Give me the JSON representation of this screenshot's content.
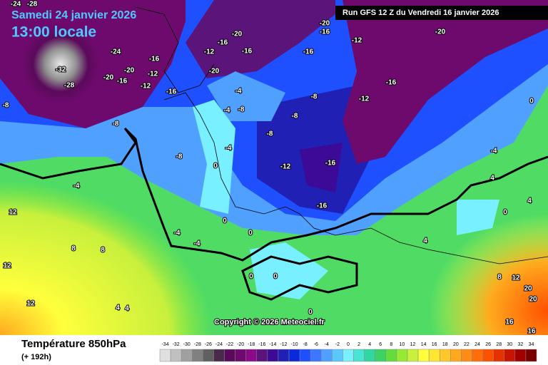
{
  "header": {
    "date": "Samedi 24 janvier 2026",
    "time": "13:00 locale",
    "run": "Run GFS 12 Z du Vendredi 16 janvier 2026"
  },
  "map": {
    "copyright": "Copyright © 2026 Meteociel.fr",
    "contour_labels": [
      -24,
      -28,
      -20,
      -16,
      -12,
      -20,
      -16,
      -24,
      -16,
      -20,
      -12,
      -20,
      -16,
      -12,
      -16,
      -8,
      -8,
      -12,
      -16,
      -20,
      -16,
      -20,
      -4,
      -4,
      -8,
      -8,
      -12,
      -16,
      -8,
      -8,
      -4,
      -8,
      -12,
      -16,
      -16,
      0,
      -4,
      12,
      -4,
      -4,
      0,
      0,
      8,
      8,
      12,
      4,
      4,
      12,
      0,
      0,
      0,
      4,
      4,
      4,
      0,
      8,
      12,
      20,
      20,
      16,
      16,
      -4,
      0,
      -32,
      -28
    ]
  },
  "legend": {
    "title": "Température 850hPa",
    "subtitle": "(+ 192h)",
    "ticks": [
      -34,
      -32,
      -30,
      -28,
      -26,
      -24,
      -22,
      -20,
      -18,
      -16,
      -14,
      -12,
      -10,
      -8,
      -6,
      -4,
      -2,
      0,
      2,
      4,
      6,
      8,
      10,
      12,
      14,
      16,
      18,
      20,
      22,
      24,
      26,
      28,
      30,
      32,
      34
    ],
    "colors": [
      "#e0e0e0",
      "#c0c0c0",
      "#a0a0a0",
      "#808080",
      "#606060",
      "#4a2a4a",
      "#5a0a5a",
      "#6e0a6e",
      "#8c0a8c",
      "#5a147a",
      "#3c0a96",
      "#2020b4",
      "#0a28dc",
      "#1e50ff",
      "#3c78ff",
      "#50a0ff",
      "#5ac8ff",
      "#78f0ff",
      "#46e6d2",
      "#32d7a0",
      "#3cd264",
      "#64dc3c",
      "#96eb32",
      "#c8f03c",
      "#ffff3c",
      "#ffe632",
      "#ffc828",
      "#ffaa1e",
      "#ff8c14",
      "#ff6e0a",
      "#ff5000",
      "#e63200",
      "#c81400",
      "#a00000",
      "#780000"
    ]
  }
}
